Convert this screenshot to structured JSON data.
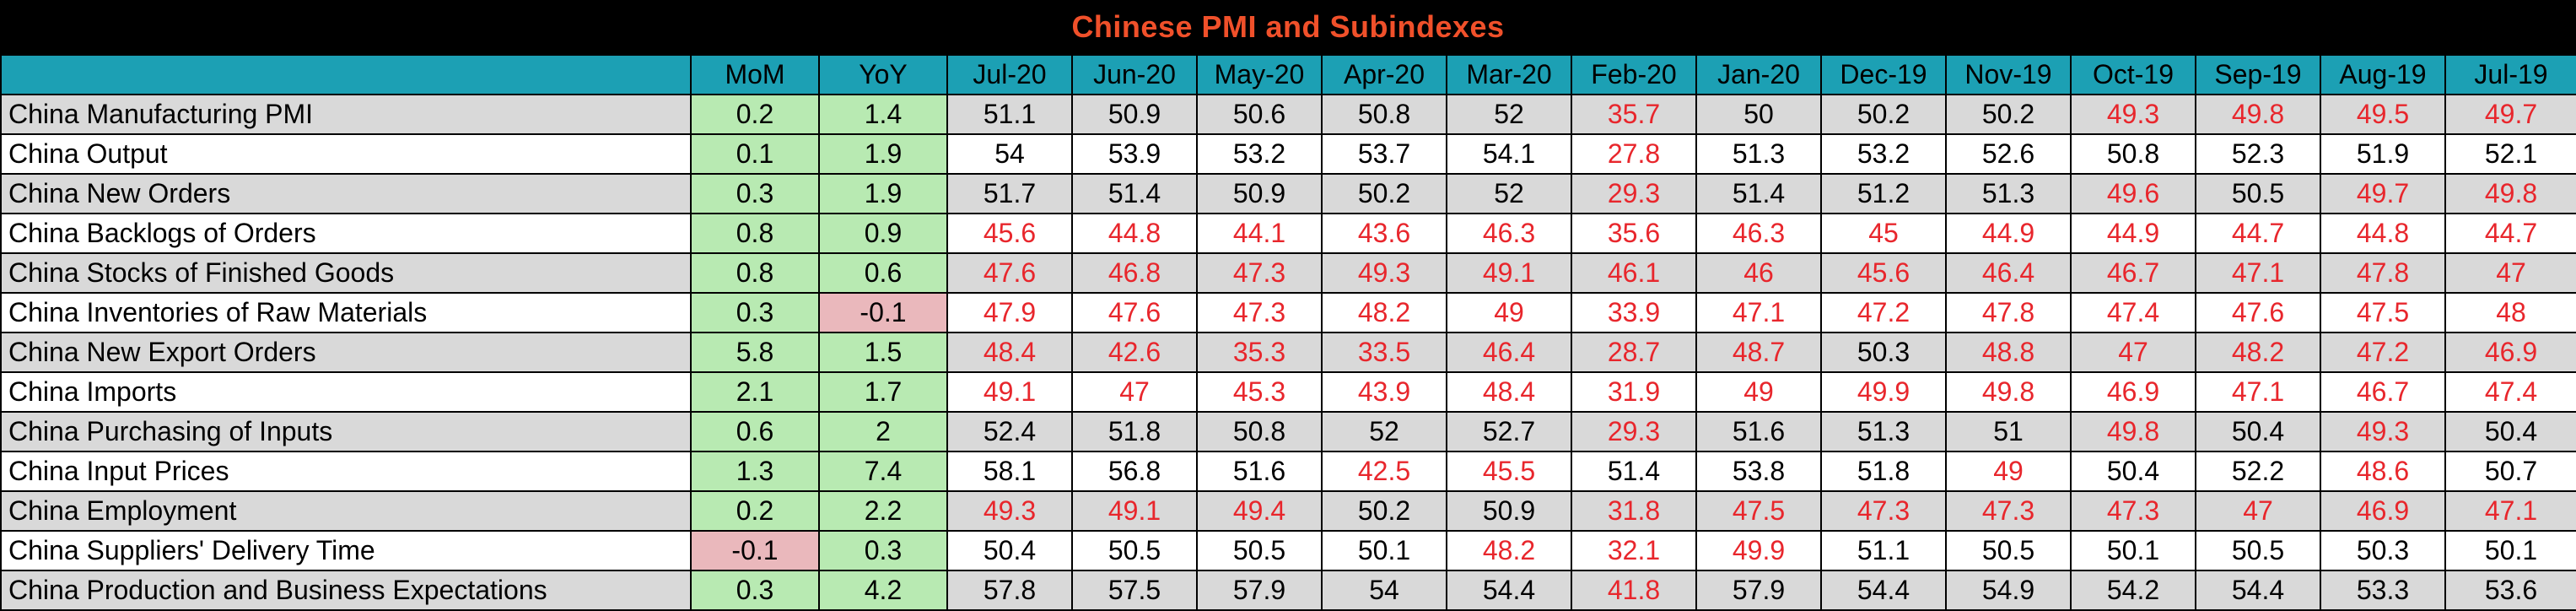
{
  "title": "Chinese PMI and Subindexes",
  "colors": {
    "below_50": "#e8262c",
    "positive_change": "#b8eab2",
    "negative_change": "#eab8bc",
    "header": "#1ca0b4",
    "title": "#f0502a"
  },
  "chart_data": {
    "type": "table",
    "title": "Chinese PMI and Subindexes",
    "columns": [
      "",
      "MoM",
      "YoY",
      "Jul-20",
      "Jun-20",
      "May-20",
      "Apr-20",
      "Mar-20",
      "Feb-20",
      "Jan-20",
      "Dec-19",
      "Nov-19",
      "Oct-19",
      "Sep-19",
      "Aug-19",
      "Jul-19"
    ],
    "rows": [
      {
        "label": "China Manufacturing PMI",
        "mom": "0.2",
        "yoy": "1.4",
        "values": [
          "51.1",
          "50.9",
          "50.6",
          "50.8",
          "52",
          "35.7",
          "50",
          "50.2",
          "50.2",
          "49.3",
          "49.8",
          "49.5",
          "49.7"
        ]
      },
      {
        "label": "China Output",
        "mom": "0.1",
        "yoy": "1.9",
        "values": [
          "54",
          "53.9",
          "53.2",
          "53.7",
          "54.1",
          "27.8",
          "51.3",
          "53.2",
          "52.6",
          "50.8",
          "52.3",
          "51.9",
          "52.1"
        ]
      },
      {
        "label": "China New Orders",
        "mom": "0.3",
        "yoy": "1.9",
        "values": [
          "51.7",
          "51.4",
          "50.9",
          "50.2",
          "52",
          "29.3",
          "51.4",
          "51.2",
          "51.3",
          "49.6",
          "50.5",
          "49.7",
          "49.8"
        ]
      },
      {
        "label": "China Backlogs of Orders",
        "mom": "0.8",
        "yoy": "0.9",
        "values": [
          "45.6",
          "44.8",
          "44.1",
          "43.6",
          "46.3",
          "35.6",
          "46.3",
          "45",
          "44.9",
          "44.9",
          "44.7",
          "44.8",
          "44.7"
        ]
      },
      {
        "label": "China Stocks of Finished Goods",
        "mom": "0.8",
        "yoy": "0.6",
        "values": [
          "47.6",
          "46.8",
          "47.3",
          "49.3",
          "49.1",
          "46.1",
          "46",
          "45.6",
          "46.4",
          "46.7",
          "47.1",
          "47.8",
          "47"
        ]
      },
      {
        "label": "China Inventories of Raw Materials",
        "mom": "0.3",
        "yoy": "-0.1",
        "values": [
          "47.9",
          "47.6",
          "47.3",
          "48.2",
          "49",
          "33.9",
          "47.1",
          "47.2",
          "47.8",
          "47.4",
          "47.6",
          "47.5",
          "48"
        ]
      },
      {
        "label": "China New Export Orders",
        "mom": "5.8",
        "yoy": "1.5",
        "values": [
          "48.4",
          "42.6",
          "35.3",
          "33.5",
          "46.4",
          "28.7",
          "48.7",
          "50.3",
          "48.8",
          "47",
          "48.2",
          "47.2",
          "46.9"
        ]
      },
      {
        "label": "China Imports",
        "mom": "2.1",
        "yoy": "1.7",
        "values": [
          "49.1",
          "47",
          "45.3",
          "43.9",
          "48.4",
          "31.9",
          "49",
          "49.9",
          "49.8",
          "46.9",
          "47.1",
          "46.7",
          "47.4"
        ]
      },
      {
        "label": "China Purchasing of Inputs",
        "mom": "0.6",
        "yoy": "2",
        "values": [
          "52.4",
          "51.8",
          "50.8",
          "52",
          "52.7",
          "29.3",
          "51.6",
          "51.3",
          "51",
          "49.8",
          "50.4",
          "49.3",
          "50.4"
        ]
      },
      {
        "label": "China Input Prices",
        "mom": "1.3",
        "yoy": "7.4",
        "values": [
          "58.1",
          "56.8",
          "51.6",
          "42.5",
          "45.5",
          "51.4",
          "53.8",
          "51.8",
          "49",
          "50.4",
          "52.2",
          "48.6",
          "50.7"
        ]
      },
      {
        "label": "China Employment",
        "mom": "0.2",
        "yoy": "2.2",
        "values": [
          "49.3",
          "49.1",
          "49.4",
          "50.2",
          "50.9",
          "31.8",
          "47.5",
          "47.3",
          "47.3",
          "47.3",
          "47",
          "46.9",
          "47.1"
        ]
      },
      {
        "label": "China Suppliers' Delivery Time",
        "mom": "-0.1",
        "yoy": "0.3",
        "values": [
          "50.4",
          "50.5",
          "50.5",
          "50.1",
          "48.2",
          "32.1",
          "49.9",
          "51.1",
          "50.5",
          "50.1",
          "50.5",
          "50.3",
          "50.1"
        ]
      },
      {
        "label": "China Production and Business Expectations",
        "mom": "0.3",
        "yoy": "4.2",
        "values": [
          "57.8",
          "57.5",
          "57.9",
          "54",
          "54.4",
          "41.8",
          "57.9",
          "54.4",
          "54.9",
          "54.2",
          "54.4",
          "53.3",
          "53.6"
        ]
      }
    ]
  }
}
